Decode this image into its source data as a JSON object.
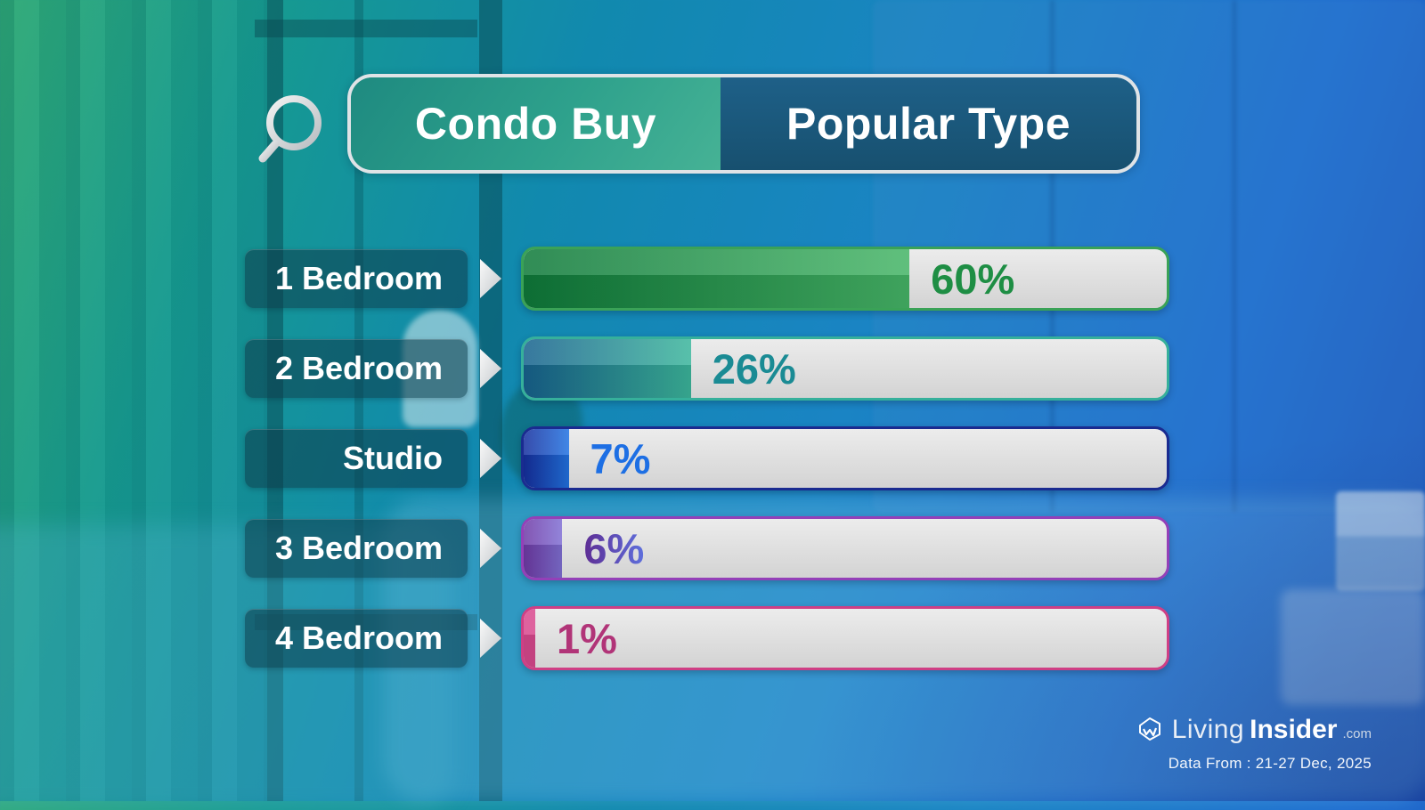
{
  "header": {
    "search_icon": "magnifier",
    "left_button": "Condo Buy",
    "right_button": "Popular Type"
  },
  "chart_data": {
    "type": "bar",
    "orientation": "horizontal",
    "title": "Condo Buy Popular Type",
    "categories": [
      "1 Bedroom",
      "2 Bedroom",
      "Studio",
      "3 Bedroom",
      "4 Bedroom"
    ],
    "values": [
      60,
      26,
      7,
      6,
      1
    ],
    "value_labels": [
      "60%",
      "26%",
      "7%",
      "6%",
      "1%"
    ],
    "xlim": [
      0,
      100
    ],
    "legend": "none",
    "grid": "off",
    "style": {
      "track_color": "#e0e0e0",
      "rows": [
        {
          "fill_from": "#0f7a3a",
          "fill_to": "#46b567",
          "border": "#3aa257",
          "text": "#1e8e44"
        },
        {
          "fill_from": "#17628e",
          "fill_to": "#3cb69c",
          "border": "#36b09b",
          "text": "#1a8b94"
        },
        {
          "fill_from": "#152f9e",
          "fill_to": "#2273e2",
          "border": "#1a2b90",
          "text": "#1d6fe4"
        },
        {
          "fill_from": "#6f3aa6",
          "fill_to": "#8070d4",
          "border": "#9440b8",
          "text": "#5e2d94",
          "text_to": "#5e6fdc"
        },
        {
          "fill_from": "#d9498e",
          "fill_to": "#d9498e",
          "border": "#cf3f85",
          "text": "#b13478"
        }
      ]
    }
  },
  "footer": {
    "brand_living": "Living",
    "brand_insider": "Insider",
    "brand_tld": ".com",
    "data_from": "Data From : 21-27 Dec, 2025"
  }
}
